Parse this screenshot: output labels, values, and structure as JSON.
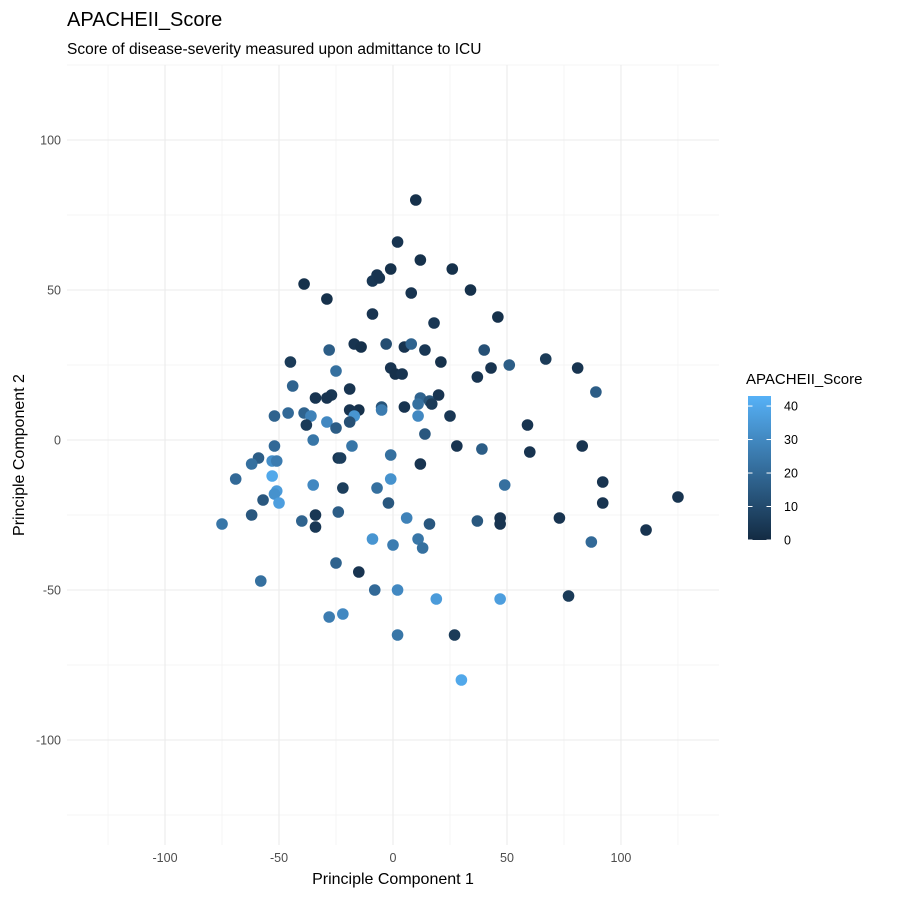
{
  "chart_data": {
    "type": "scatter",
    "title": "APACHEII_Score",
    "subtitle": "Score of disease-severity measured upon admittance to ICU",
    "xlabel": "Principle Component 1",
    "ylabel": "Principle Component 2",
    "xlim": [
      -143,
      143
    ],
    "ylim": [
      -135,
      125
    ],
    "x_ticks": [
      -100,
      -50,
      0,
      50,
      100
    ],
    "x_tick_labels": [
      "-100",
      "-50",
      "0",
      "50",
      "100"
    ],
    "y_ticks": [
      -100,
      -50,
      0,
      50,
      100
    ],
    "y_tick_labels": [
      "-100",
      "-50",
      "0",
      "50",
      "100"
    ],
    "grid": true,
    "legend": {
      "title": "APACHEII_Score",
      "position": "right",
      "breaks": [
        0,
        10,
        20,
        30,
        40
      ],
      "break_labels": [
        "0",
        "10",
        "20",
        "30",
        "40"
      ],
      "range": [
        0,
        43
      ],
      "low_color": "#132B43",
      "high_color": "#56B1F7"
    },
    "points": [
      {
        "x": 10,
        "y": 80,
        "score": 2
      },
      {
        "x": 2,
        "y": 66,
        "score": 3
      },
      {
        "x": 12,
        "y": 60,
        "score": 2
      },
      {
        "x": -1,
        "y": 57,
        "score": 2
      },
      {
        "x": -7,
        "y": 55,
        "score": 3
      },
      {
        "x": -9,
        "y": 53,
        "score": 4
      },
      {
        "x": -6,
        "y": 54,
        "score": 3
      },
      {
        "x": 26,
        "y": 57,
        "score": 2
      },
      {
        "x": -39,
        "y": 52,
        "score": 2
      },
      {
        "x": 8,
        "y": 49,
        "score": 3
      },
      {
        "x": 34,
        "y": 50,
        "score": 2
      },
      {
        "x": -29,
        "y": 47,
        "score": 2
      },
      {
        "x": -9,
        "y": 42,
        "score": 3
      },
      {
        "x": 46,
        "y": 41,
        "score": 2
      },
      {
        "x": 18,
        "y": 39,
        "score": 4
      },
      {
        "x": -17,
        "y": 32,
        "score": 3
      },
      {
        "x": -14,
        "y": 31,
        "score": 2
      },
      {
        "x": -3,
        "y": 32,
        "score": 11
      },
      {
        "x": 5,
        "y": 31,
        "score": 3
      },
      {
        "x": 8,
        "y": 32,
        "score": 18
      },
      {
        "x": 14,
        "y": 30,
        "score": 4
      },
      {
        "x": 40,
        "y": 30,
        "score": 12
      },
      {
        "x": -28,
        "y": 30,
        "score": 16
      },
      {
        "x": -45,
        "y": 26,
        "score": 5
      },
      {
        "x": 21,
        "y": 26,
        "score": 2
      },
      {
        "x": 67,
        "y": 27,
        "score": 5
      },
      {
        "x": 43,
        "y": 24,
        "score": 3
      },
      {
        "x": 51,
        "y": 25,
        "score": 16
      },
      {
        "x": 81,
        "y": 24,
        "score": 3
      },
      {
        "x": -25,
        "y": 23,
        "score": 22
      },
      {
        "x": -1,
        "y": 24,
        "score": 3
      },
      {
        "x": 1,
        "y": 22,
        "score": 2
      },
      {
        "x": 4,
        "y": 22,
        "score": 3
      },
      {
        "x": 37,
        "y": 21,
        "score": 3
      },
      {
        "x": -44,
        "y": 18,
        "score": 18
      },
      {
        "x": -19,
        "y": 17,
        "score": 3
      },
      {
        "x": -27,
        "y": 15,
        "score": 4
      },
      {
        "x": -29,
        "y": 14,
        "score": 3
      },
      {
        "x": -34,
        "y": 14,
        "score": 3
      },
      {
        "x": 12,
        "y": 14,
        "score": 18
      },
      {
        "x": 16,
        "y": 13,
        "score": 13
      },
      {
        "x": 20,
        "y": 15,
        "score": 3
      },
      {
        "x": 89,
        "y": 16,
        "score": 16
      },
      {
        "x": -5,
        "y": 11,
        "score": 13
      },
      {
        "x": 5,
        "y": 11,
        "score": 3
      },
      {
        "x": 11,
        "y": 12,
        "score": 22
      },
      {
        "x": 17,
        "y": 12,
        "score": 5
      },
      {
        "x": -15,
        "y": 10,
        "score": 2
      },
      {
        "x": -19,
        "y": 10,
        "score": 3
      },
      {
        "x": -5,
        "y": 10,
        "score": 26
      },
      {
        "x": -17,
        "y": 8,
        "score": 34
      },
      {
        "x": 11,
        "y": 8,
        "score": 30
      },
      {
        "x": 25,
        "y": 8,
        "score": 4
      },
      {
        "x": -52,
        "y": 8,
        "score": 18
      },
      {
        "x": -46,
        "y": 9,
        "score": 20
      },
      {
        "x": -39,
        "y": 9,
        "score": 18
      },
      {
        "x": -36,
        "y": 8,
        "score": 28
      },
      {
        "x": -29,
        "y": 6,
        "score": 30
      },
      {
        "x": -38,
        "y": 5,
        "score": 5
      },
      {
        "x": -25,
        "y": 4,
        "score": 16
      },
      {
        "x": -19,
        "y": 6,
        "score": 12
      },
      {
        "x": 14,
        "y": 2,
        "score": 14
      },
      {
        "x": 59,
        "y": 5,
        "score": 3
      },
      {
        "x": -35,
        "y": 0,
        "score": 24
      },
      {
        "x": -52,
        "y": -2,
        "score": 20
      },
      {
        "x": -18,
        "y": -2,
        "score": 24
      },
      {
        "x": 28,
        "y": -2,
        "score": 3
      },
      {
        "x": 39,
        "y": -3,
        "score": 16
      },
      {
        "x": 83,
        "y": -2,
        "score": 3
      },
      {
        "x": -59,
        "y": -6,
        "score": 16
      },
      {
        "x": -62,
        "y": -8,
        "score": 22
      },
      {
        "x": -53,
        "y": -7,
        "score": 32
      },
      {
        "x": -51,
        "y": -7,
        "score": 26
      },
      {
        "x": -24,
        "y": -6,
        "score": 4
      },
      {
        "x": -23,
        "y": -6,
        "score": 6
      },
      {
        "x": -1,
        "y": -5,
        "score": 22
      },
      {
        "x": 60,
        "y": -4,
        "score": 3
      },
      {
        "x": 12,
        "y": -8,
        "score": 3
      },
      {
        "x": -69,
        "y": -13,
        "score": 20
      },
      {
        "x": -53,
        "y": -12,
        "score": 40
      },
      {
        "x": -51,
        "y": -17,
        "score": 36
      },
      {
        "x": -52,
        "y": -18,
        "score": 33
      },
      {
        "x": -35,
        "y": -15,
        "score": 30
      },
      {
        "x": -22,
        "y": -16,
        "score": 6
      },
      {
        "x": -1,
        "y": -13,
        "score": 33
      },
      {
        "x": -7,
        "y": -16,
        "score": 22
      },
      {
        "x": 49,
        "y": -15,
        "score": 22
      },
      {
        "x": 92,
        "y": -14,
        "score": 3
      },
      {
        "x": -57,
        "y": -20,
        "score": 14
      },
      {
        "x": -50,
        "y": -21,
        "score": 37
      },
      {
        "x": -2,
        "y": -21,
        "score": 14
      },
      {
        "x": 92,
        "y": -21,
        "score": 3
      },
      {
        "x": 125,
        "y": -19,
        "score": 3
      },
      {
        "x": -62,
        "y": -25,
        "score": 14
      },
      {
        "x": -34,
        "y": -25,
        "score": 4
      },
      {
        "x": -24,
        "y": -24,
        "score": 16
      },
      {
        "x": -75,
        "y": -28,
        "score": 24
      },
      {
        "x": -40,
        "y": -27,
        "score": 18
      },
      {
        "x": -34,
        "y": -29,
        "score": 4
      },
      {
        "x": 6,
        "y": -26,
        "score": 28
      },
      {
        "x": 16,
        "y": -28,
        "score": 14
      },
      {
        "x": 37,
        "y": -27,
        "score": 14
      },
      {
        "x": 47,
        "y": -26,
        "score": 3
      },
      {
        "x": 47,
        "y": -28,
        "score": 3
      },
      {
        "x": 73,
        "y": -26,
        "score": 3
      },
      {
        "x": -9,
        "y": -33,
        "score": 34
      },
      {
        "x": 0,
        "y": -35,
        "score": 26
      },
      {
        "x": 11,
        "y": -33,
        "score": 24
      },
      {
        "x": 13,
        "y": -36,
        "score": 22
      },
      {
        "x": 87,
        "y": -34,
        "score": 20
      },
      {
        "x": 111,
        "y": -30,
        "score": 3
      },
      {
        "x": -25,
        "y": -41,
        "score": 18
      },
      {
        "x": -15,
        "y": -44,
        "score": 3
      },
      {
        "x": -58,
        "y": -47,
        "score": 22
      },
      {
        "x": -8,
        "y": -50,
        "score": 20
      },
      {
        "x": 2,
        "y": -50,
        "score": 30
      },
      {
        "x": 19,
        "y": -53,
        "score": 36
      },
      {
        "x": 47,
        "y": -53,
        "score": 37
      },
      {
        "x": 77,
        "y": -52,
        "score": 5
      },
      {
        "x": -28,
        "y": -59,
        "score": 26
      },
      {
        "x": -22,
        "y": -58,
        "score": 30
      },
      {
        "x": 2,
        "y": -65,
        "score": 24
      },
      {
        "x": 27,
        "y": -65,
        "score": 5
      },
      {
        "x": 30,
        "y": -80,
        "score": 40
      }
    ]
  }
}
